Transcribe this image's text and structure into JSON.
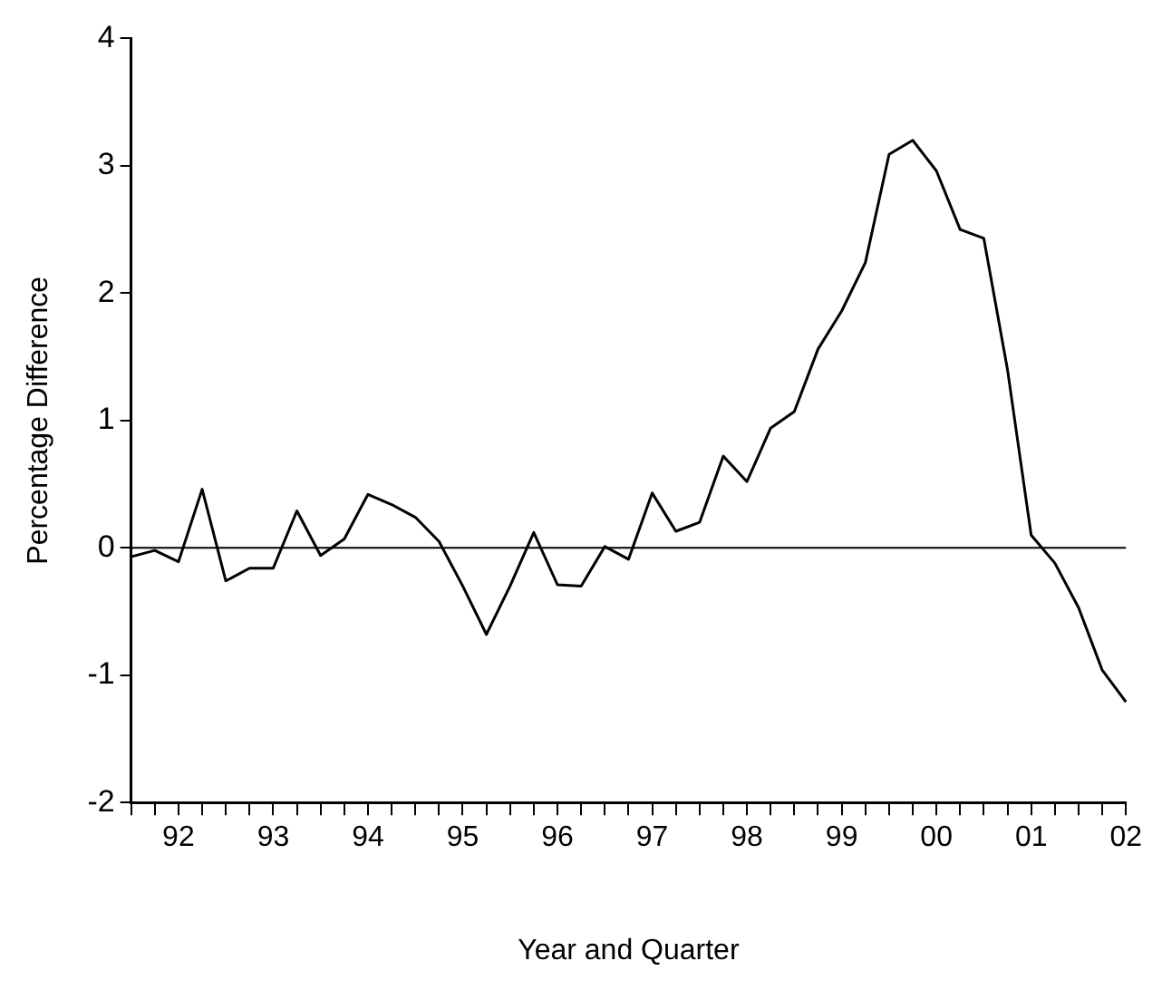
{
  "chart_data": {
    "type": "line",
    "xlabel": "Year and Quarter",
    "ylabel": "Percentage Difference",
    "categories": [
      null,
      null,
      "92",
      null,
      null,
      null,
      "93",
      null,
      null,
      null,
      "94",
      null,
      null,
      null,
      "95",
      null,
      null,
      null,
      "96",
      null,
      null,
      null,
      "97",
      null,
      null,
      null,
      "98",
      null,
      null,
      null,
      "99",
      null,
      null,
      null,
      "00",
      null,
      null,
      null,
      "01",
      null,
      null,
      null,
      "02"
    ],
    "series": [
      {
        "color": "#000000",
        "values": [
          -0.07,
          -0.02,
          -0.11,
          0.46,
          -0.26,
          -0.16,
          -0.16,
          0.29,
          -0.06,
          0.07,
          0.42,
          0.34,
          0.24,
          0.05,
          -0.3,
          -0.68,
          -0.3,
          0.12,
          -0.29,
          -0.3,
          0.01,
          -0.09,
          0.43,
          0.13,
          0.2,
          0.72,
          0.52,
          0.94,
          1.07,
          1.56,
          1.86,
          2.24,
          3.09,
          3.2,
          2.96,
          2.5,
          2.43,
          1.4,
          0.1,
          -0.12,
          -0.47,
          -0.96,
          -1.21
        ]
      }
    ],
    "ylim": [
      -2,
      4
    ],
    "yticks": [
      -2,
      -1,
      0,
      1,
      2,
      3,
      4
    ],
    "ref_lines": [
      {
        "axis": "y",
        "value": 0,
        "color": "#000000"
      }
    ],
    "grid": false,
    "legend": false,
    "marker": "none",
    "line_style": "solid"
  }
}
